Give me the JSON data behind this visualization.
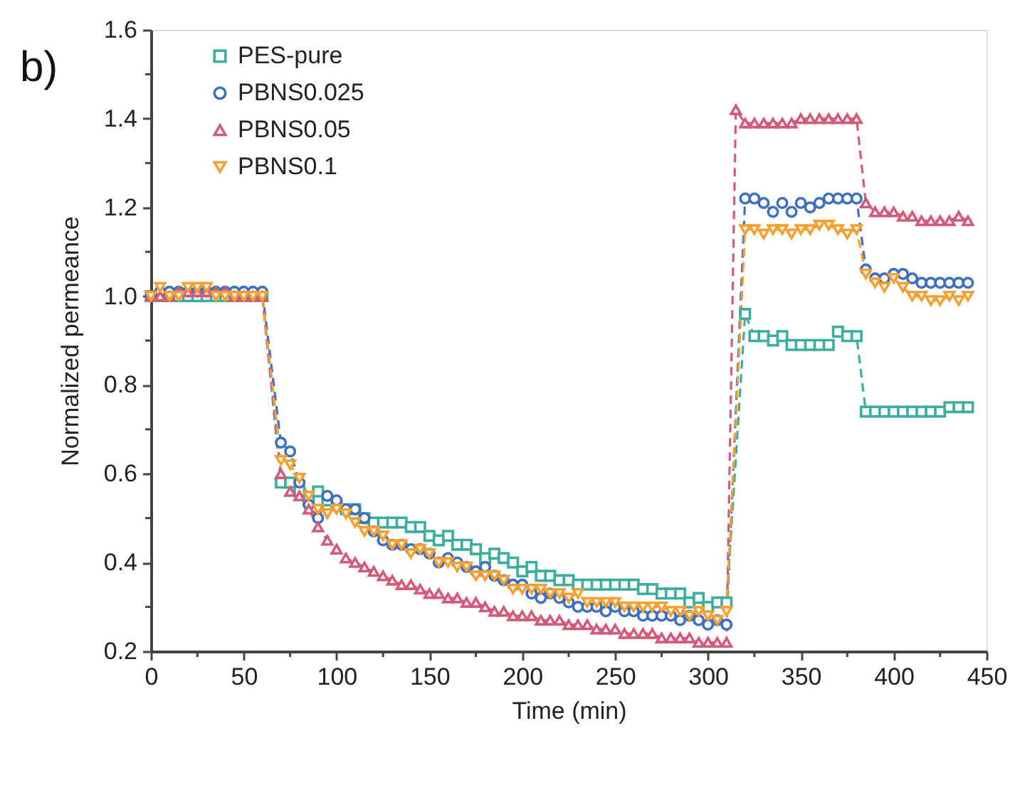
{
  "chart_data": {
    "type": "line",
    "title": "b)",
    "xlabel": "Time (min)",
    "ylabel": "Normalized permeance",
    "xlim": [
      0,
      450
    ],
    "xticks": [
      0,
      {
        "value": 25,
        "label": null
      },
      50,
      {
        "value": 75,
        "label": null
      },
      100,
      {
        "value": 125,
        "label": null
      },
      150,
      {
        "value": 175,
        "label": null
      },
      200,
      {
        "value": 225,
        "label": null
      },
      250,
      {
        "value": 275,
        "label": null
      },
      300,
      {
        "value": 325,
        "label": null
      },
      350,
      {
        "value": 375,
        "label": null
      },
      400,
      {
        "value": 425,
        "label": null
      },
      450
    ],
    "ylim": [
      0.2,
      1.6
    ],
    "yticks": [
      {
        "value": 0.2,
        "label": "0.2"
      },
      {
        "value": 0.3,
        "label": null
      },
      {
        "value": 0.4,
        "label": "0.4"
      },
      {
        "value": 0.5,
        "label": null
      },
      {
        "value": 0.6,
        "label": "0.6"
      },
      {
        "value": 0.7,
        "label": null
      },
      {
        "value": 0.8,
        "label": "0.8"
      },
      {
        "value": 0.9,
        "label": null
      },
      {
        "value": 1.0,
        "label": "1.0"
      },
      {
        "value": 1.1,
        "label": null
      },
      {
        "value": 1.2,
        "label": "1.2"
      },
      {
        "value": 1.3,
        "label": null
      },
      {
        "value": 1.4,
        "label": "1.4"
      },
      {
        "value": 1.5,
        "label": null
      },
      {
        "value": 1.6,
        "label": "1.6"
      }
    ],
    "grid": false,
    "legend": "top left",
    "line_style": "dashed",
    "series": [
      {
        "name": "PES-pure",
        "color": "#3aaea0",
        "marker": "square",
        "x": [
          0,
          5,
          10,
          15,
          20,
          25,
          30,
          35,
          40,
          45,
          50,
          55,
          60,
          70,
          75,
          80,
          85,
          90,
          95,
          100,
          105,
          110,
          115,
          120,
          125,
          130,
          135,
          140,
          145,
          150,
          155,
          160,
          165,
          170,
          175,
          180,
          185,
          190,
          195,
          200,
          205,
          210,
          215,
          220,
          225,
          230,
          235,
          240,
          245,
          250,
          255,
          260,
          265,
          270,
          275,
          280,
          285,
          290,
          295,
          300,
          305,
          310,
          320,
          325,
          330,
          335,
          340,
          345,
          350,
          355,
          360,
          365,
          370,
          375,
          380,
          385,
          390,
          395,
          400,
          405,
          410,
          415,
          420,
          425,
          430,
          435,
          440
        ],
        "values": [
          1.0,
          1.0,
          1.0,
          1.0,
          1.0,
          1.0,
          1.0,
          1.0,
          1.0,
          1.0,
          1.0,
          1.0,
          1.0,
          0.58,
          0.58,
          0.56,
          0.54,
          0.56,
          0.54,
          0.53,
          0.52,
          0.52,
          0.5,
          0.49,
          0.49,
          0.49,
          0.49,
          0.48,
          0.48,
          0.46,
          0.45,
          0.46,
          0.44,
          0.44,
          0.43,
          0.41,
          0.42,
          0.41,
          0.4,
          0.38,
          0.39,
          0.37,
          0.37,
          0.36,
          0.36,
          0.35,
          0.35,
          0.35,
          0.35,
          0.35,
          0.35,
          0.35,
          0.34,
          0.34,
          0.33,
          0.33,
          0.33,
          0.31,
          0.32,
          0.3,
          0.31,
          0.31,
          0.96,
          0.91,
          0.91,
          0.9,
          0.91,
          0.89,
          0.89,
          0.89,
          0.89,
          0.89,
          0.92,
          0.91,
          0.91,
          0.74,
          0.74,
          0.74,
          0.74,
          0.74,
          0.74,
          0.74,
          0.74,
          0.74,
          0.75,
          0.75,
          0.75
        ]
      },
      {
        "name": "PBNS0.025",
        "color": "#3f6fbf",
        "marker": "circle",
        "x": [
          0,
          5,
          10,
          15,
          20,
          25,
          30,
          35,
          40,
          45,
          50,
          55,
          60,
          70,
          75,
          80,
          85,
          90,
          95,
          100,
          105,
          110,
          115,
          120,
          125,
          130,
          135,
          140,
          145,
          150,
          155,
          160,
          165,
          170,
          175,
          180,
          185,
          190,
          195,
          200,
          205,
          210,
          215,
          220,
          225,
          230,
          235,
          240,
          245,
          250,
          255,
          260,
          265,
          270,
          275,
          280,
          285,
          290,
          295,
          300,
          305,
          310,
          320,
          325,
          330,
          335,
          340,
          345,
          350,
          355,
          360,
          365,
          370,
          375,
          380,
          385,
          390,
          395,
          400,
          405,
          410,
          415,
          420,
          425,
          430,
          435,
          440
        ],
        "values": [
          1.0,
          1.01,
          1.01,
          1.01,
          1.01,
          1.01,
          1.01,
          1.01,
          1.01,
          1.01,
          1.01,
          1.01,
          1.01,
          0.67,
          0.65,
          0.58,
          0.53,
          0.5,
          0.55,
          0.54,
          0.52,
          0.52,
          0.5,
          0.47,
          0.45,
          0.44,
          0.44,
          0.43,
          0.43,
          0.42,
          0.4,
          0.41,
          0.4,
          0.39,
          0.38,
          0.39,
          0.37,
          0.36,
          0.35,
          0.35,
          0.33,
          0.32,
          0.33,
          0.32,
          0.31,
          0.3,
          0.3,
          0.3,
          0.29,
          0.3,
          0.29,
          0.29,
          0.28,
          0.28,
          0.28,
          0.28,
          0.27,
          0.28,
          0.27,
          0.26,
          0.27,
          0.26,
          1.22,
          1.22,
          1.21,
          1.19,
          1.21,
          1.19,
          1.21,
          1.2,
          1.21,
          1.22,
          1.22,
          1.22,
          1.22,
          1.06,
          1.04,
          1.04,
          1.05,
          1.05,
          1.04,
          1.03,
          1.03,
          1.03,
          1.03,
          1.03,
          1.03
        ]
      },
      {
        "name": "PBNS0.05",
        "color": "#d45a7a",
        "marker": "triangle",
        "x": [
          0,
          5,
          10,
          15,
          20,
          25,
          30,
          35,
          40,
          45,
          50,
          55,
          60,
          70,
          75,
          80,
          85,
          90,
          95,
          100,
          105,
          110,
          115,
          120,
          125,
          130,
          135,
          140,
          145,
          150,
          155,
          160,
          165,
          170,
          175,
          180,
          185,
          190,
          195,
          200,
          205,
          210,
          215,
          220,
          225,
          230,
          235,
          240,
          245,
          250,
          255,
          260,
          265,
          270,
          275,
          280,
          285,
          290,
          295,
          300,
          305,
          310,
          315,
          320,
          325,
          330,
          335,
          340,
          345,
          350,
          355,
          360,
          365,
          370,
          375,
          380,
          385,
          390,
          395,
          400,
          405,
          410,
          415,
          420,
          425,
          430,
          435,
          440
        ],
        "values": [
          1.0,
          1.0,
          1.0,
          1.01,
          1.01,
          1.01,
          1.01,
          1.01,
          1.01,
          1.0,
          1.0,
          1.0,
          1.0,
          0.6,
          0.56,
          0.55,
          0.52,
          0.48,
          0.45,
          0.43,
          0.41,
          0.4,
          0.39,
          0.38,
          0.37,
          0.36,
          0.35,
          0.35,
          0.34,
          0.33,
          0.33,
          0.32,
          0.32,
          0.31,
          0.31,
          0.3,
          0.29,
          0.29,
          0.28,
          0.28,
          0.28,
          0.27,
          0.27,
          0.27,
          0.26,
          0.26,
          0.26,
          0.25,
          0.25,
          0.25,
          0.24,
          0.24,
          0.24,
          0.24,
          0.23,
          0.23,
          0.23,
          0.23,
          0.22,
          0.22,
          0.22,
          0.22,
          1.42,
          1.39,
          1.39,
          1.39,
          1.39,
          1.39,
          1.39,
          1.4,
          1.4,
          1.4,
          1.4,
          1.4,
          1.4,
          1.4,
          1.21,
          1.19,
          1.19,
          1.19,
          1.18,
          1.18,
          1.17,
          1.17,
          1.17,
          1.17,
          1.18,
          1.17
        ]
      },
      {
        "name": "PBNS0.1",
        "color": "#f5a030",
        "marker": "triangle-down",
        "x": [
          0,
          5,
          10,
          15,
          20,
          25,
          30,
          35,
          40,
          45,
          50,
          55,
          60,
          70,
          75,
          80,
          85,
          90,
          95,
          100,
          105,
          110,
          115,
          120,
          125,
          130,
          135,
          140,
          145,
          150,
          155,
          160,
          165,
          170,
          175,
          180,
          185,
          190,
          195,
          200,
          205,
          210,
          215,
          220,
          225,
          230,
          235,
          240,
          245,
          250,
          255,
          260,
          265,
          270,
          275,
          280,
          285,
          290,
          295,
          300,
          305,
          310,
          320,
          325,
          330,
          335,
          340,
          345,
          350,
          355,
          360,
          365,
          370,
          375,
          380,
          385,
          390,
          395,
          400,
          405,
          410,
          415,
          420,
          425,
          430,
          435,
          440
        ],
        "values": [
          1.0,
          1.02,
          1.0,
          1.0,
          1.02,
          1.02,
          1.02,
          1.0,
          1.0,
          1.0,
          1.0,
          1.0,
          1.0,
          0.63,
          0.62,
          0.59,
          0.55,
          0.52,
          0.51,
          0.52,
          0.51,
          0.49,
          0.47,
          0.47,
          0.46,
          0.44,
          0.44,
          0.42,
          0.43,
          0.42,
          0.4,
          0.4,
          0.39,
          0.39,
          0.37,
          0.37,
          0.37,
          0.36,
          0.34,
          0.34,
          0.34,
          0.34,
          0.33,
          0.33,
          0.32,
          0.33,
          0.31,
          0.31,
          0.31,
          0.31,
          0.3,
          0.3,
          0.3,
          0.3,
          0.3,
          0.29,
          0.29,
          0.28,
          0.29,
          0.28,
          0.27,
          0.29,
          1.15,
          1.15,
          1.14,
          1.15,
          1.15,
          1.14,
          1.15,
          1.15,
          1.16,
          1.16,
          1.15,
          1.14,
          1.15,
          1.05,
          1.03,
          1.02,
          1.04,
          1.02,
          1.0,
          1.0,
          0.99,
          0.99,
          1.0,
          0.99,
          1.0
        ]
      }
    ]
  }
}
